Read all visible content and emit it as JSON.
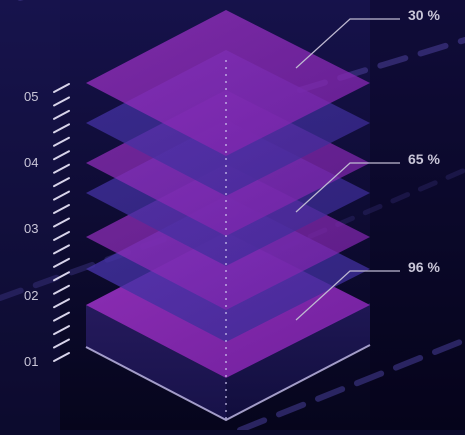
{
  "scale_labels": [
    "05",
    "04",
    "03",
    "02",
    "01"
  ],
  "callouts": [
    {
      "text": "30 %"
    },
    {
      "text": "65 %"
    },
    {
      "text": "96 %"
    }
  ],
  "colors": {
    "background_top": "#15114a",
    "background_bottom": "#06051c",
    "layer_purple": "#8a2bb8",
    "layer_indigo": "#3e2f9a",
    "accent_line": "#4a3e8c",
    "text": "#c9c6d8"
  }
}
